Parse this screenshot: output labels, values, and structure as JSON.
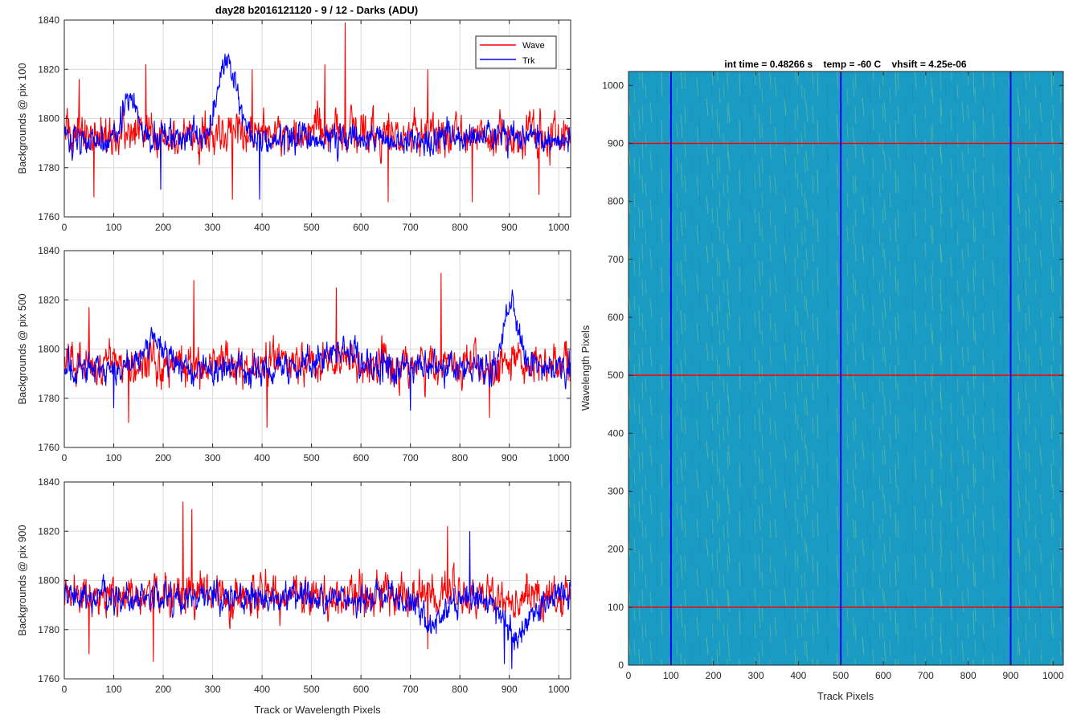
{
  "figure": {
    "title": "day28 b2016121120 - 9 / 12 - Darks (ADU)",
    "colors": {
      "wave": "#ff0000",
      "trk": "#0000ff",
      "heat_base": "#1a9bc4",
      "heat_hi": "#9fd36a"
    }
  },
  "chart_data": [
    {
      "type": "line",
      "title": "day28 b2016121120 - 9 / 12 - Darks (ADU)",
      "xlabel": "",
      "ylabel": "Backgrounds @ pix 100",
      "xlim": [
        0,
        1024
      ],
      "ylim": [
        1760,
        1840
      ],
      "xticks": [
        0,
        100,
        200,
        300,
        400,
        500,
        600,
        700,
        800,
        900,
        1000
      ],
      "yticks": [
        1760,
        1780,
        1800,
        1820,
        1840
      ],
      "grid": true,
      "legend": "top-right",
      "series": [
        {
          "name": "Wave",
          "color": "#ff0000",
          "mean": 1794,
          "noise": 7,
          "spikes": [
            [
              30,
              1816
            ],
            [
              165,
              1822
            ],
            [
              380,
              1820
            ],
            [
              527,
              1822
            ],
            [
              568,
              1839
            ],
            [
              735,
              1820
            ],
            [
              60,
              1768
            ],
            [
              340,
              1767
            ],
            [
              655,
              1766
            ],
            [
              825,
              1766
            ],
            [
              960,
              1769
            ]
          ]
        },
        {
          "name": "Trk",
          "color": "#0000ff",
          "mean": 1792,
          "noise": 5,
          "bumps": [
            [
              330,
              1822,
              20
            ],
            [
              130,
              1808,
              15
            ]
          ],
          "spikes": [
            [
              195,
              1771
            ],
            [
              395,
              1767
            ]
          ]
        }
      ]
    },
    {
      "type": "line",
      "title": "",
      "xlabel": "",
      "ylabel": "Backgrounds @ pix 500",
      "xlim": [
        0,
        1024
      ],
      "ylim": [
        1760,
        1840
      ],
      "xticks": [
        0,
        100,
        200,
        300,
        400,
        500,
        600,
        700,
        800,
        900,
        1000
      ],
      "yticks": [
        1760,
        1780,
        1800,
        1820,
        1840
      ],
      "grid": true,
      "series": [
        {
          "name": "Wave",
          "color": "#ff0000",
          "mean": 1794,
          "noise": 7,
          "spikes": [
            [
              50,
              1817
            ],
            [
              262,
              1828
            ],
            [
              550,
              1825
            ],
            [
              762,
              1831
            ],
            [
              130,
              1770
            ],
            [
              410,
              1768
            ],
            [
              860,
              1772
            ]
          ]
        },
        {
          "name": "Trk",
          "color": "#0000ff",
          "mean": 1792,
          "noise": 5,
          "bumps": [
            [
              905,
              1818,
              15
            ],
            [
              180,
              1804,
              20
            ],
            [
              560,
              1800,
              40
            ]
          ],
          "spikes": [
            [
              100,
              1776
            ],
            [
              700,
              1775
            ]
          ]
        }
      ]
    },
    {
      "type": "line",
      "title": "",
      "xlabel": "Track or Wavelength Pixels",
      "ylabel": "Backgrounds @ pix 900",
      "xlim": [
        0,
        1024
      ],
      "ylim": [
        1760,
        1840
      ],
      "xticks": [
        0,
        100,
        200,
        300,
        400,
        500,
        600,
        700,
        800,
        900,
        1000
      ],
      "yticks": [
        1760,
        1780,
        1800,
        1820,
        1840
      ],
      "grid": true,
      "series": [
        {
          "name": "Wave",
          "color": "#ff0000",
          "mean": 1794,
          "noise": 7,
          "spikes": [
            [
              240,
              1832
            ],
            [
              258,
              1829
            ],
            [
              775,
              1822
            ],
            [
              180,
              1767
            ],
            [
              735,
              1772
            ],
            [
              50,
              1770
            ]
          ]
        },
        {
          "name": "Trk",
          "color": "#0000ff",
          "mean": 1793,
          "noise": 5,
          "bumps": [
            [
              915,
              1776,
              25
            ],
            [
              740,
              1782,
              25
            ]
          ],
          "spikes": [
            [
              820,
              1820
            ],
            [
              890,
              1766
            ],
            [
              905,
              1764
            ]
          ]
        }
      ]
    },
    {
      "type": "heatmap",
      "title": "int time = 0.48266 s    temp = -60 C    vhsift = 4.25e-06",
      "xlabel": "Track Pixels",
      "ylabel": "Wavelength Pixels",
      "xlim": [
        0,
        1024
      ],
      "ylim": [
        0,
        1024
      ],
      "xticks": [
        0,
        100,
        200,
        300,
        400,
        500,
        600,
        700,
        800,
        900,
        1000
      ],
      "yticks": [
        0,
        100,
        200,
        300,
        400,
        500,
        600,
        700,
        800,
        900,
        1000
      ],
      "colormap": "parula",
      "overlays": {
        "horizontal_lines": {
          "values": [
            100,
            500,
            900
          ],
          "color": "#ff0000"
        },
        "vertical_lines": {
          "values": [
            100,
            500,
            900
          ],
          "color": "#0000ff"
        }
      }
    }
  ]
}
